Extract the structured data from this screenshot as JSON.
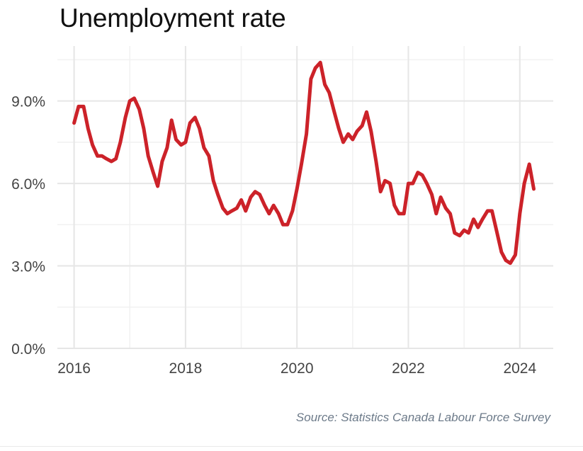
{
  "chart_data": {
    "type": "line",
    "title": "Unemployment rate",
    "source": "Source: Statistics Canada Labour Force Survey",
    "xlabel": "",
    "ylabel": "",
    "x_ticks": [
      2016,
      2018,
      2020,
      2022,
      2024
    ],
    "x_tick_labels": [
      "2016",
      "2018",
      "2020",
      "2022",
      "2024"
    ],
    "y_ticks": [
      0,
      3,
      6,
      9
    ],
    "y_tick_labels": [
      "0.0%",
      "3.0%",
      "6.0%",
      "9.0%"
    ],
    "xlim": [
      2015.7,
      2024.6
    ],
    "ylim": [
      0,
      11
    ],
    "grid": true,
    "line_color": "#cc2229",
    "series": [
      {
        "x": [
          2016.0,
          2016.08,
          2016.17,
          2016.25,
          2016.33,
          2016.42,
          2016.5,
          2016.58,
          2016.67,
          2016.75,
          2016.83,
          2016.92,
          2017.0,
          2017.08,
          2017.17,
          2017.25,
          2017.33,
          2017.42,
          2017.5,
          2017.58,
          2017.67,
          2017.75,
          2017.83,
          2017.92,
          2018.0,
          2018.08,
          2018.17,
          2018.25,
          2018.33,
          2018.42,
          2018.5,
          2018.58,
          2018.67,
          2018.75,
          2018.83,
          2018.92,
          2019.0,
          2019.08,
          2019.17,
          2019.25,
          2019.33,
          2019.42,
          2019.5,
          2019.58,
          2019.67,
          2019.75,
          2019.83,
          2019.92,
          2020.0,
          2020.08,
          2020.17,
          2020.25,
          2020.33,
          2020.42,
          2020.5,
          2020.58,
          2020.67,
          2020.75,
          2020.83,
          2020.92,
          2021.0,
          2021.08,
          2021.17,
          2021.25,
          2021.33,
          2021.42,
          2021.5,
          2021.58,
          2021.67,
          2021.75,
          2021.83,
          2021.92,
          2022.0,
          2022.08,
          2022.17,
          2022.25,
          2022.33,
          2022.42,
          2022.5,
          2022.58,
          2022.67,
          2022.75,
          2022.83,
          2022.92,
          2023.0,
          2023.08,
          2023.17,
          2023.25,
          2023.33,
          2023.42,
          2023.5,
          2023.58,
          2023.67,
          2023.75,
          2023.83,
          2023.92,
          2024.0,
          2024.08,
          2024.17,
          2024.25
        ],
        "values": [
          8.2,
          8.8,
          8.8,
          8.0,
          7.4,
          7.0,
          7.0,
          6.9,
          6.8,
          6.9,
          7.5,
          8.4,
          9.0,
          9.1,
          8.7,
          8.0,
          7.0,
          6.4,
          5.9,
          6.8,
          7.3,
          8.3,
          7.6,
          7.4,
          7.5,
          8.2,
          8.4,
          8.0,
          7.3,
          7.0,
          6.1,
          5.6,
          5.1,
          4.9,
          5.0,
          5.1,
          5.4,
          5.0,
          5.5,
          5.7,
          5.6,
          5.2,
          4.9,
          5.2,
          4.9,
          4.5,
          4.5,
          5.0,
          5.8,
          6.7,
          7.8,
          9.8,
          10.2,
          10.4,
          9.6,
          9.3,
          8.6,
          8.0,
          7.5,
          7.8,
          7.6,
          7.9,
          8.1,
          8.6,
          7.9,
          6.8,
          5.7,
          6.1,
          6.0,
          5.2,
          4.9,
          4.9,
          6.0,
          6.0,
          6.4,
          6.3,
          6.0,
          5.6,
          4.9,
          5.5,
          5.1,
          4.9,
          4.2,
          4.1,
          4.3,
          4.2,
          4.7,
          4.4,
          4.7,
          5.0,
          5.0,
          4.3,
          3.5,
          3.2,
          3.1,
          3.4,
          4.9,
          6.0,
          6.7,
          5.8
        ]
      }
    ]
  }
}
